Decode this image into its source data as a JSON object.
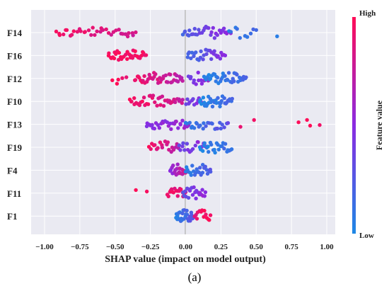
{
  "caption": "(a)",
  "chart_data": {
    "type": "scatter",
    "subtype": "shap-beeswarm",
    "title": "",
    "xlabel": "SHAP value (impact on model output)",
    "ylabel": "",
    "xlim": [
      -1.0,
      1.0
    ],
    "xticks": [
      "−1.00",
      "−0.75",
      "−0.50",
      "−0.25",
      "0.00",
      "0.25",
      "0.50",
      "0.75",
      "1.00"
    ],
    "grid": true,
    "zero_line": true,
    "features": [
      "F14",
      "F16",
      "F12",
      "F10",
      "F13",
      "F19",
      "F4",
      "F11",
      "F1"
    ],
    "colorbar": {
      "label": "Feature value",
      "high": "High",
      "low": "Low",
      "high_color": "#ff0d57",
      "mid_color": "#8a2be2",
      "low_color": "#1e88e5"
    },
    "colors": {
      "background": "#eaeaf2",
      "grid": "#ffffff",
      "zero_line": "#999999"
    },
    "series": [
      {
        "feature": "F14",
        "clusters": [
          {
            "x": [
              -0.92,
              -0.35
            ],
            "c": [
              0.95,
              0.8
            ],
            "n": 36
          },
          {
            "x": [
              -0.02,
              0.32
            ],
            "c": [
              0.2,
              0.55
            ],
            "n": 34
          },
          {
            "x": [
              0.3,
              0.5
            ],
            "c": [
              0.05,
              0.15
            ],
            "n": 10
          },
          {
            "x": [
              0.64,
              0.66
            ],
            "c": [
              0.0,
              0.05
            ],
            "n": 1
          }
        ]
      },
      {
        "feature": "F16",
        "clusters": [
          {
            "x": [
              -0.55,
              -0.28
            ],
            "c": [
              1.0,
              0.92
            ],
            "n": 34
          },
          {
            "x": [
              0.01,
              0.28
            ],
            "c": [
              0.15,
              0.5
            ],
            "n": 30
          }
        ]
      },
      {
        "feature": "F12",
        "clusters": [
          {
            "x": [
              -0.52,
              -0.42
            ],
            "c": [
              1.0,
              0.95
            ],
            "n": 5
          },
          {
            "x": [
              -0.36,
              -0.02
            ],
            "c": [
              0.95,
              0.7
            ],
            "n": 42
          },
          {
            "x": [
              0.02,
              0.16
            ],
            "c": [
              0.35,
              0.55
            ],
            "n": 14
          },
          {
            "x": [
              0.13,
              0.43
            ],
            "c": [
              0.0,
              0.2
            ],
            "n": 38
          }
        ]
      },
      {
        "feature": "F10",
        "clusters": [
          {
            "x": [
              -0.4,
              -0.02
            ],
            "c": [
              1.0,
              0.75
            ],
            "n": 38
          },
          {
            "x": [
              0.0,
              0.12
            ],
            "c": [
              0.3,
              0.55
            ],
            "n": 12
          },
          {
            "x": [
              0.1,
              0.33
            ],
            "c": [
              0.0,
              0.2
            ],
            "n": 32
          }
        ]
      },
      {
        "feature": "F13",
        "clusters": [
          {
            "x": [
              -0.28,
              0.02
            ],
            "c": [
              0.45,
              0.6
            ],
            "n": 30
          },
          {
            "x": [
              0.0,
              0.3
            ],
            "c": [
              0.05,
              0.3
            ],
            "n": 26
          },
          {
            "x": [
              0.35,
              0.52
            ],
            "c": [
              0.9,
              1.0
            ],
            "n": 2
          },
          {
            "x": [
              0.8,
              0.95
            ],
            "c": [
              1.0,
              1.0
            ],
            "n": 4
          }
        ]
      },
      {
        "feature": "F19",
        "clusters": [
          {
            "x": [
              -0.26,
              -0.05
            ],
            "c": [
              0.95,
              0.7
            ],
            "n": 20
          },
          {
            "x": [
              -0.05,
              0.15
            ],
            "c": [
              0.35,
              0.55
            ],
            "n": 18
          },
          {
            "x": [
              0.1,
              0.33
            ],
            "c": [
              0.0,
              0.15
            ],
            "n": 26
          }
        ]
      },
      {
        "feature": "F4",
        "clusters": [
          {
            "x": [
              -0.11,
              0.0
            ],
            "c": [
              0.5,
              0.8
            ],
            "n": 22
          },
          {
            "x": [
              0.0,
              0.18
            ],
            "c": [
              0.05,
              0.25
            ],
            "n": 24
          }
        ]
      },
      {
        "feature": "F11",
        "clusters": [
          {
            "x": [
              -0.36,
              -0.27
            ],
            "c": [
              1.0,
              1.0
            ],
            "n": 2
          },
          {
            "x": [
              -0.13,
              0.0
            ],
            "c": [
              0.95,
              0.85
            ],
            "n": 18
          },
          {
            "x": [
              -0.02,
              0.14
            ],
            "c": [
              0.3,
              0.55
            ],
            "n": 22
          }
        ]
      },
      {
        "feature": "F1",
        "clusters": [
          {
            "x": [
              -0.07,
              0.06
            ],
            "c": [
              0.05,
              0.3
            ],
            "n": 30
          },
          {
            "x": [
              0.06,
              0.18
            ],
            "c": [
              0.9,
              1.0
            ],
            "n": 14
          }
        ]
      }
    ]
  }
}
